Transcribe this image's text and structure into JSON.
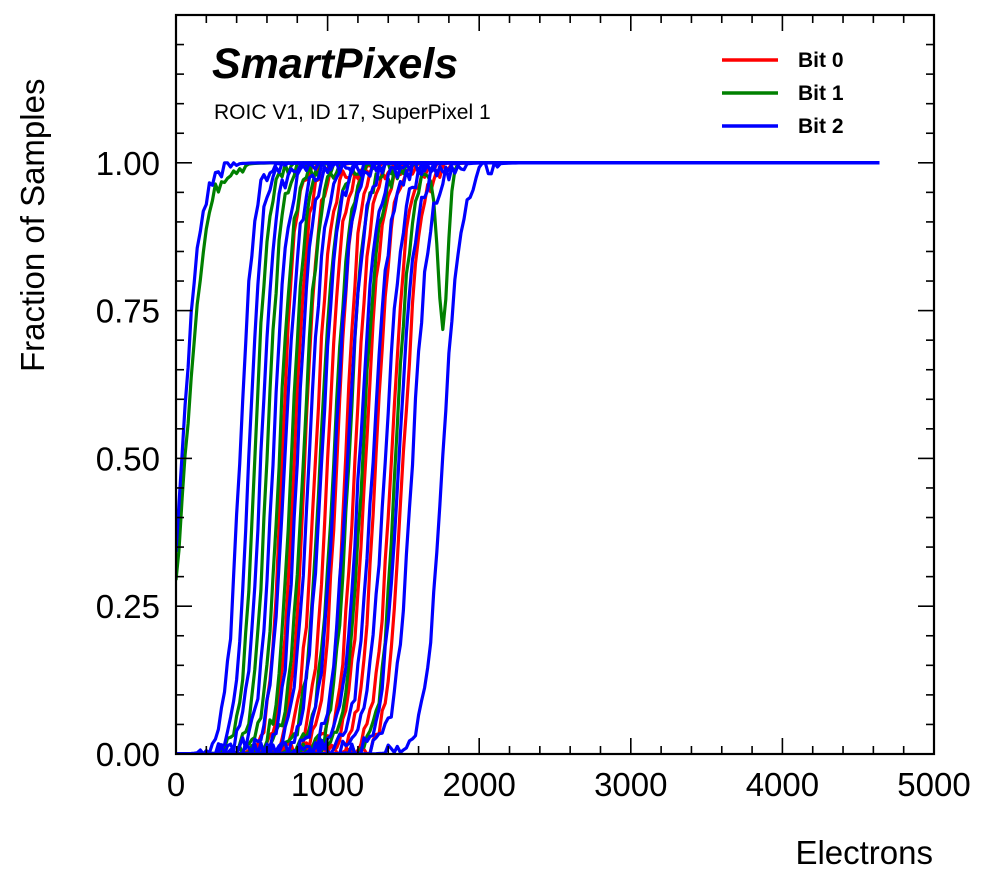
{
  "chart_data": {
    "type": "line",
    "title": "SmartPixels",
    "subtitle": "ROIC V1, ID 17, SuperPixel 1",
    "xlabel": "Electrons",
    "ylabel": "Fraction of Samples",
    "xlim": [
      0,
      5000
    ],
    "ylim": [
      0,
      1.25
    ],
    "xticks": [
      0,
      1000,
      2000,
      3000,
      4000,
      5000
    ],
    "xtick_labels": [
      "0",
      "1000",
      "2000",
      "3000",
      "4000",
      "5000"
    ],
    "yticks": [
      0,
      0.25,
      0.5,
      0.75,
      1.0
    ],
    "ytick_labels": [
      "0.00",
      "0.25",
      "0.50",
      "0.75",
      "1.00"
    ],
    "x_end": 4650,
    "legend_position": "top-right",
    "colors": {
      "Bit 0": "#ff0000",
      "Bit 1": "#008000",
      "Bit 2": "#0000ff"
    },
    "series": [
      {
        "name": "Bit 0",
        "curves": [
          {
            "c": 700,
            "w": 90
          },
          {
            "c": 780,
            "w": 100
          },
          {
            "c": 850,
            "w": 95
          },
          {
            "c": 920,
            "w": 110
          },
          {
            "c": 1000,
            "w": 105
          },
          {
            "c": 1060,
            "w": 100
          },
          {
            "c": 1120,
            "w": 95
          },
          {
            "c": 1180,
            "w": 110
          },
          {
            "c": 1250,
            "w": 115
          },
          {
            "c": 1320,
            "w": 110
          },
          {
            "c": 1420,
            "w": 115
          },
          {
            "c": 1500,
            "w": 120
          }
        ]
      },
      {
        "name": "Bit 1",
        "curves": [
          {
            "c": 60,
            "w": 150
          },
          {
            "c": 520,
            "w": 95
          },
          {
            "c": 600,
            "w": 100
          },
          {
            "c": 680,
            "w": 105
          },
          {
            "c": 760,
            "w": 100
          },
          {
            "c": 840,
            "w": 110
          },
          {
            "c": 950,
            "w": 110
          },
          {
            "c": 1040,
            "w": 115
          },
          {
            "c": 1140,
            "w": 110
          },
          {
            "c": 1230,
            "w": 120
          },
          {
            "c": 1450,
            "w": 110,
            "dip_center": 1760,
            "dip_depth": 0.28,
            "dip_width": 45
          }
        ]
      },
      {
        "name": "Bit 2",
        "curves": [
          {
            "c": 40,
            "w": 130
          },
          {
            "c": 420,
            "w": 100
          },
          {
            "c": 480,
            "w": 95
          },
          {
            "c": 560,
            "w": 100
          },
          {
            "c": 640,
            "w": 105
          },
          {
            "c": 720,
            "w": 110
          },
          {
            "c": 800,
            "w": 105
          },
          {
            "c": 880,
            "w": 110
          },
          {
            "c": 960,
            "w": 115
          },
          {
            "c": 1050,
            "w": 115
          },
          {
            "c": 1130,
            "w": 120
          },
          {
            "c": 1210,
            "w": 120
          },
          {
            "c": 1300,
            "w": 125
          },
          {
            "c": 1380,
            "w": 125
          },
          {
            "c": 1470,
            "w": 125
          },
          {
            "c": 1560,
            "w": 125
          },
          {
            "c": 1760,
            "w": 130
          }
        ]
      }
    ]
  }
}
